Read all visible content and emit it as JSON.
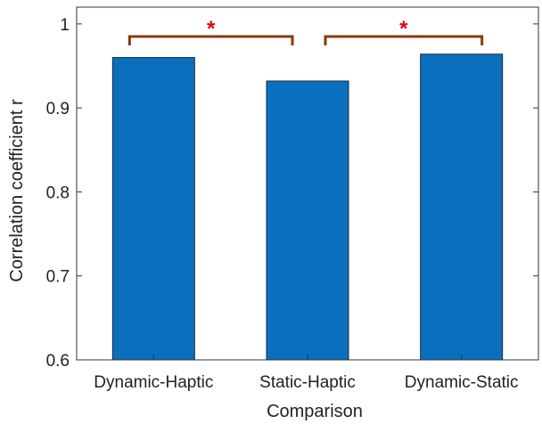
{
  "chart_data": {
    "type": "bar",
    "categories": [
      "Dynamic-Haptic",
      "Static-Haptic",
      "Dynamic-Static"
    ],
    "values": [
      0.96,
      0.932,
      0.964
    ],
    "xlabel": "Comparison",
    "ylabel": "Correlation coefficient r",
    "ylim": [
      0.6,
      1.02
    ],
    "yticks": [
      0.6,
      0.7,
      0.8,
      0.9,
      1
    ],
    "ytick_labels": [
      "0.6",
      "0.7",
      "0.8",
      "0.9",
      "1"
    ],
    "grid": false,
    "bar_color": "#0a6fbd",
    "significance": [
      {
        "from": 0,
        "to": 1,
        "label": "*",
        "level": 0.985
      },
      {
        "from": 1,
        "to": 2,
        "label": "*",
        "level": 0.985
      }
    ],
    "bracket_color": "#8b3a0e",
    "star_color": "#e8000b"
  }
}
